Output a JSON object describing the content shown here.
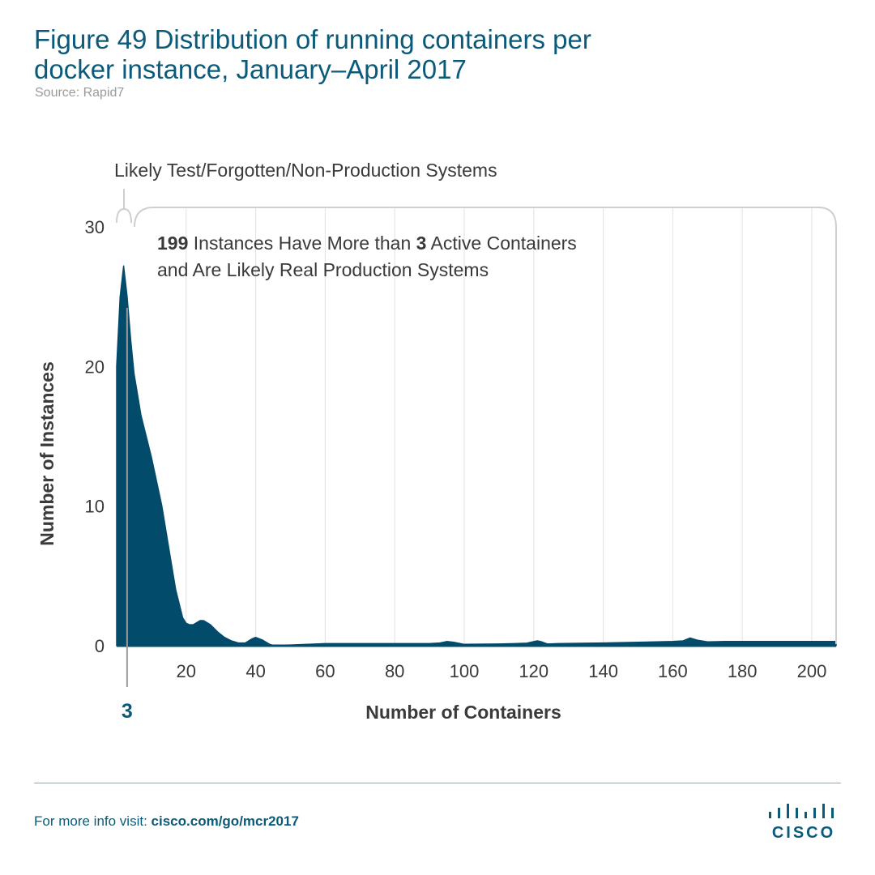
{
  "header": {
    "title_line1": "Figure 49  Distribution of running containers per",
    "title_line2": "docker instance, January–April 2017",
    "source": "Source: Rapid7"
  },
  "chart_data": {
    "type": "area",
    "title": "Figure 49  Distribution of running containers per docker instance, January–April 2017",
    "xlabel": "Number of Containers",
    "ylabel": "Number of Instances",
    "xlim": [
      0,
      207
    ],
    "ylim": [
      0,
      30
    ],
    "x_ticks": [
      20,
      40,
      60,
      80,
      100,
      120,
      140,
      160,
      180,
      200
    ],
    "y_ticks": [
      0,
      10,
      20,
      30
    ],
    "grid": "vertical",
    "color": "#024b6b",
    "series": [
      {
        "x": [
          0,
          1,
          2,
          3,
          4,
          5,
          7,
          10,
          13,
          15,
          17,
          19,
          20,
          21,
          22,
          24,
          25,
          27,
          29,
          31,
          33,
          35,
          37,
          39,
          40,
          42,
          44,
          45,
          50,
          55,
          60,
          70,
          80,
          90,
          93,
          95,
          97,
          100,
          110,
          118,
          121,
          122,
          124,
          127,
          140,
          150,
          160,
          163,
          165,
          167,
          170,
          175,
          180,
          190,
          200,
          207
        ],
        "values": [
          20,
          25,
          27.2,
          25,
          22,
          19.5,
          16.5,
          13.5,
          10,
          7,
          4,
          2,
          1.6,
          1.5,
          1.5,
          1.8,
          1.8,
          1.5,
          1.0,
          0.6,
          0.35,
          0.2,
          0.2,
          0.5,
          0.6,
          0.4,
          0.1,
          0.03,
          0.05,
          0.1,
          0.15,
          0.15,
          0.15,
          0.15,
          0.2,
          0.3,
          0.25,
          0.1,
          0.12,
          0.18,
          0.35,
          0.3,
          0.12,
          0.15,
          0.2,
          0.25,
          0.3,
          0.35,
          0.55,
          0.4,
          0.28,
          0.3,
          0.3,
          0.3,
          0.3,
          0.3
        ]
      }
    ],
    "marker": {
      "x": 3,
      "label": "3"
    },
    "annotations": {
      "left_bracket": "Likely Test/Forgotten/Non-Production Systems",
      "right_bold_count": "199",
      "right_text_a": " Instances Have More than ",
      "right_bold_threshold": "3",
      "right_text_b": " Active Containers",
      "right_line2": "and Are Likely Real Production Systems"
    }
  },
  "footer": {
    "prefix": "For more info visit: ",
    "link": "cisco.com/go/mcr2017",
    "logo_word": "CISCO"
  }
}
